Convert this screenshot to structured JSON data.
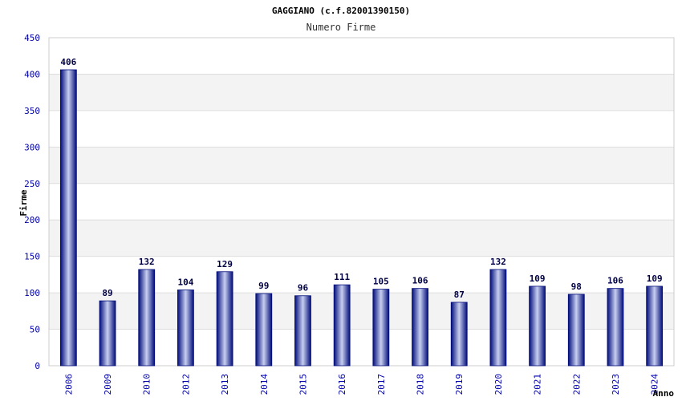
{
  "chart_data": {
    "type": "bar",
    "title": "GAGGIANO (c.f.82001390150)",
    "subtitle": "Numero Firme",
    "xlabel": "Anno",
    "ylabel": "Firme",
    "ylim": [
      0,
      450
    ],
    "yticks": [
      0,
      50,
      100,
      150,
      200,
      250,
      300,
      350,
      400,
      450
    ],
    "categories": [
      "2006",
      "2009",
      "2010",
      "2012",
      "2013",
      "2014",
      "2015",
      "2016",
      "2017",
      "2018",
      "2019",
      "2020",
      "2021",
      "2022",
      "2023",
      "2024"
    ],
    "values": [
      406,
      89,
      132,
      104,
      129,
      99,
      96,
      111,
      105,
      106,
      87,
      132,
      109,
      98,
      106,
      109
    ],
    "grid": true,
    "legend": "none",
    "colors": {
      "bar_dark": "#000c7a",
      "bar_light": "#c8cff0",
      "tick_label": "#0000aa",
      "grid_band": "#f3f3f3",
      "grid_line": "#dddddd"
    }
  }
}
